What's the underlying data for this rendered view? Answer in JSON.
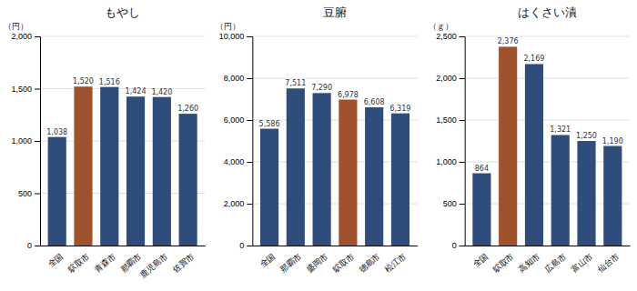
{
  "chart_data": [
    {
      "type": "bar",
      "title": "もやし",
      "ylabel": "（円）",
      "categories": [
        "全国",
        "鴥取市",
        "青森市",
        "那覇市",
        "鹿児島市",
        "佐賀市"
      ],
      "values": [
        1038,
        1520,
        1516,
        1424,
        1420,
        1260
      ],
      "value_labels": [
        "1,038",
        "1,520",
        "1,516",
        "1,424",
        "1,420",
        "1,260"
      ],
      "colors": [
        "#2E4D7B",
        "#A0522D",
        "#2E4D7B",
        "#2E4D7B",
        "#2E4D7B",
        "#2E4D7B"
      ],
      "ylim": [
        0,
        2000
      ],
      "yticks": [
        0,
        500,
        {
          "value": 1000,
          "label": "1,000"
        },
        {
          "value": 1500,
          "label": "1,500"
        },
        {
          "value": 2000,
          "label": "2,000"
        }
      ],
      "grid": true,
      "data_labels": true
    },
    {
      "type": "bar",
      "title": "豆腑",
      "ylabel": "（円）",
      "categories": [
        "全国",
        "那覇市",
        "盛岡市",
        "鴥取市",
        "徳島市",
        "松江市"
      ],
      "values": [
        5586,
        7511,
        7290,
        6978,
        6608,
        6319
      ],
      "value_labels": [
        "5,586",
        "7,511",
        "7,290",
        "6,978",
        "6,608",
        "6,319"
      ],
      "colors": [
        "#2E4D7B",
        "#2E4D7B",
        "#2E4D7B",
        "#A0522D",
        "#2E4D7B",
        "#2E4D7B"
      ],
      "ylim": [
        0,
        10000
      ],
      "yticks": [
        0,
        {
          "value": 2000,
          "label": "2,000"
        },
        {
          "value": 4000,
          "label": "4,000"
        },
        {
          "value": 6000,
          "label": "6,000"
        },
        {
          "value": 8000,
          "label": "8,000"
        },
        {
          "value": 10000,
          "label": "10,000"
        }
      ],
      "grid": true,
      "data_labels": true
    },
    {
      "type": "bar",
      "title": "はくさい漬",
      "ylabel": "（ｇ）",
      "categories": [
        "全国",
        "鴥取市",
        "高知市",
        "広島市",
        "富山市",
        "仙台市"
      ],
      "values": [
        864,
        2376,
        2169,
        1321,
        1250,
        1190
      ],
      "value_labels": [
        "864",
        "2,376",
        "2,169",
        "1,321",
        "1,250",
        "1,190"
      ],
      "colors": [
        "#2E4D7B",
        "#A0522D",
        "#2E4D7B",
        "#2E4D7B",
        "#2E4D7B",
        "#2E4D7B"
      ],
      "ylim": [
        0,
        2500
      ],
      "yticks": [
        0,
        500,
        {
          "value": 1000,
          "label": "1,000"
        },
        {
          "value": 1500,
          "label": "1,500"
        },
        {
          "value": 2000,
          "label": "2,000"
        },
        {
          "value": 2500,
          "label": "2,500"
        }
      ],
      "grid": true,
      "data_labels": true
    }
  ]
}
